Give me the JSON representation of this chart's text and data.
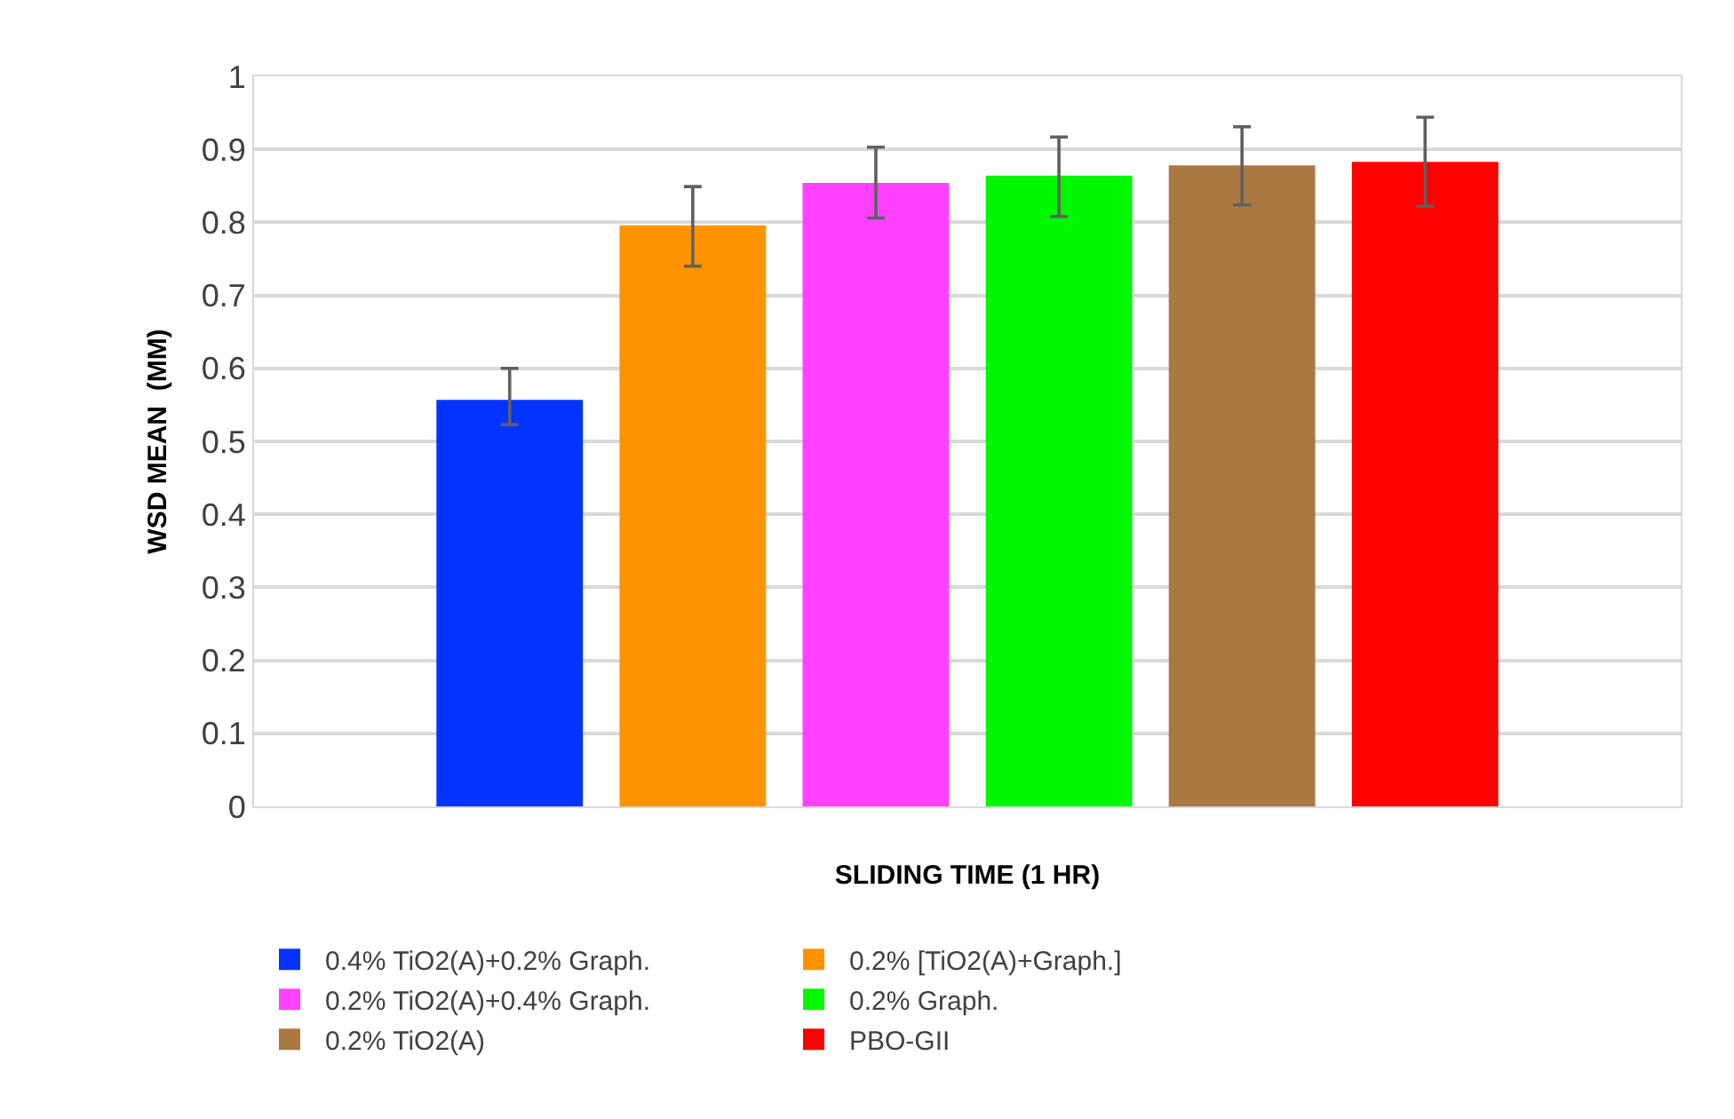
{
  "chart_data": {
    "type": "bar",
    "xlabel": "SLIDING TIME (1 HR)",
    "ylabel": "WSD MEAN  (MM)",
    "categories": [
      null
    ],
    "series": [
      {
        "name": "0.4% TiO2(A)+0.2% Graph.",
        "color": "#0433ff",
        "values": [
          0.557
        ],
        "errors": [
          [
            0.523,
            0.6
          ]
        ]
      },
      {
        "name": "0.2% [TiO2(A)+Graph.]",
        "color": "#ff9300",
        "values": [
          0.796
        ],
        "errors": [
          [
            0.74,
            0.849
          ]
        ]
      },
      {
        "name": "0.2% TiO2(A)+0.4% Graph.",
        "color": "#ff40ff",
        "values": [
          0.854
        ],
        "errors": [
          [
            0.806,
            0.903
          ]
        ]
      },
      {
        "name": "0.2% Graph.",
        "color": "#00f900",
        "values": [
          0.864
        ],
        "errors": [
          [
            0.808,
            0.917
          ]
        ]
      },
      {
        "name": "0.2% TiO2(A)",
        "color": "#aa7942",
        "values": [
          0.878
        ],
        "errors": [
          [
            0.824,
            0.931
          ]
        ]
      },
      {
        "name": "PBO-GII",
        "color": "#ff0000",
        "values": [
          0.883
        ],
        "errors": [
          [
            0.822,
            0.944
          ]
        ]
      }
    ],
    "ylim": [
      0,
      1
    ],
    "yticks": [
      0,
      0.1,
      0.2,
      0.3,
      0.4,
      0.5,
      0.6,
      0.7,
      0.8,
      0.9,
      1
    ],
    "grid": "y",
    "legend": "bottom"
  }
}
